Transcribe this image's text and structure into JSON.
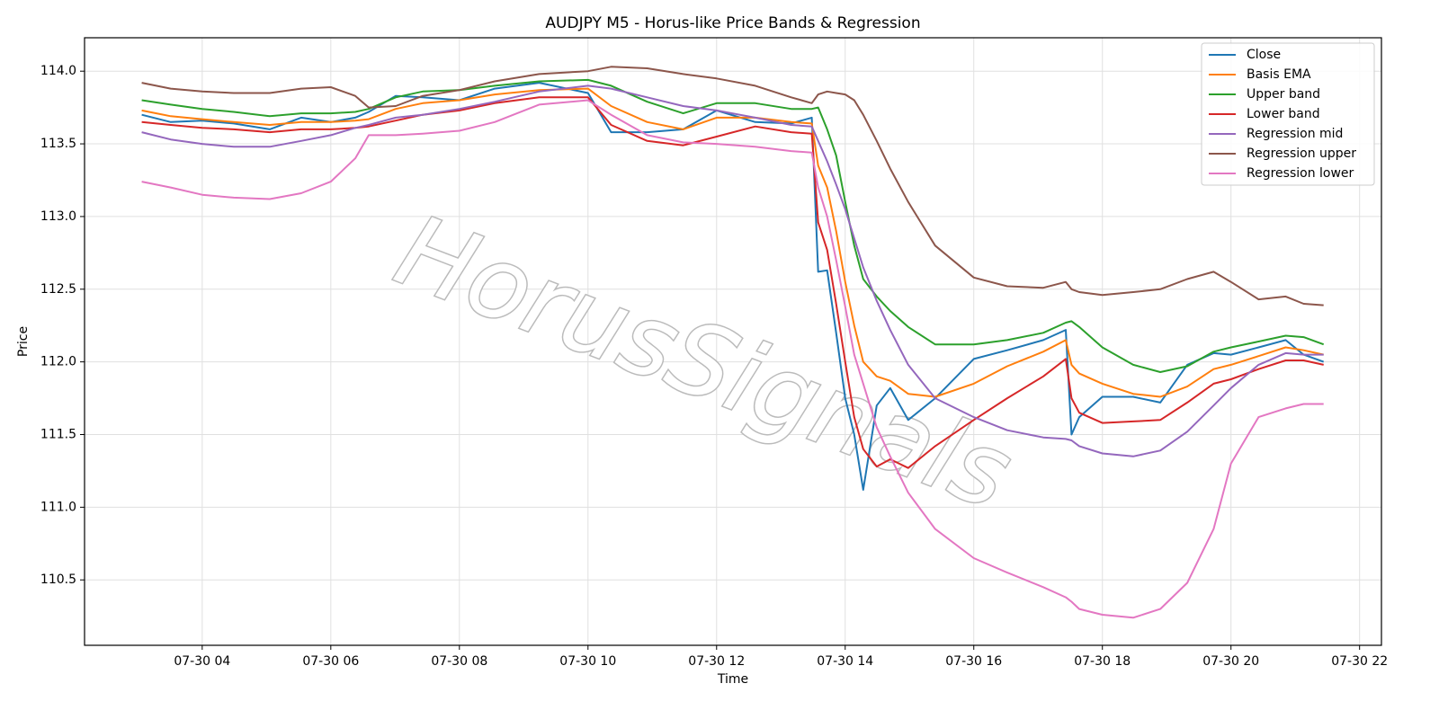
{
  "chart_data": {
    "type": "line",
    "title": "AUDJPY M5 - Horus-like Price Bands & Regression",
    "xlabel": "Time",
    "ylabel": "Price",
    "watermark": "HorusSignals",
    "grid": true,
    "legend": "upper right",
    "xlim": [
      2.17,
      22.34
    ],
    "ylim": [
      110.05,
      114.23
    ],
    "xticks": [
      {
        "value": 4,
        "label": "07-30 04"
      },
      {
        "value": 6,
        "label": "07-30 06"
      },
      {
        "value": 8,
        "label": "07-30 08"
      },
      {
        "value": 10,
        "label": "07-30 10"
      },
      {
        "value": 12,
        "label": "07-30 12"
      },
      {
        "value": 14,
        "label": "07-30 14"
      },
      {
        "value": 16,
        "label": "07-30 16"
      },
      {
        "value": 18,
        "label": "07-30 18"
      },
      {
        "value": 20,
        "label": "07-30 20"
      },
      {
        "value": 22,
        "label": "07-30 22"
      }
    ],
    "yticks": [
      110.5,
      {
        "value": 111,
        "label": "111.0"
      },
      111.5,
      {
        "value": 112,
        "label": "112.0"
      },
      112.5,
      {
        "value": 113,
        "label": "113.0"
      },
      113.5,
      {
        "value": 114,
        "label": "114.0"
      }
    ],
    "x": [
      3.06,
      3.51,
      4.0,
      4.49,
      5.05,
      5.54,
      6.0,
      6.38,
      6.59,
      7.01,
      7.43,
      8.0,
      8.55,
      9.24,
      10.0,
      10.36,
      10.92,
      11.48,
      12.0,
      12.6,
      13.16,
      13.48,
      13.58,
      13.72,
      13.86,
      14.0,
      14.14,
      14.28,
      14.49,
      14.7,
      14.98,
      15.4,
      16.0,
      16.52,
      17.08,
      17.43,
      17.52,
      17.64,
      18.0,
      18.48,
      18.9,
      19.32,
      19.73,
      20.0,
      20.43,
      20.85,
      21.13,
      21.44
    ],
    "series": [
      {
        "name": "Close",
        "color": "#1f77b4",
        "values": [
          113.7,
          113.65,
          113.66,
          113.64,
          113.6,
          113.68,
          113.65,
          113.68,
          113.72,
          113.83,
          113.82,
          113.8,
          113.88,
          113.92,
          113.85,
          113.58,
          113.58,
          113.6,
          113.73,
          113.65,
          113.64,
          113.68,
          112.62,
          112.63,
          112.2,
          111.75,
          111.5,
          111.12,
          111.7,
          111.82,
          111.6,
          111.75,
          112.02,
          112.08,
          112.15,
          112.22,
          111.5,
          111.62,
          111.76,
          111.76,
          111.72,
          111.98,
          112.06,
          112.05,
          112.1,
          112.15,
          112.05,
          112.0
        ]
      },
      {
        "name": "Basis EMA",
        "color": "#ff7f0e",
        "values": [
          113.73,
          113.69,
          113.67,
          113.65,
          113.63,
          113.65,
          113.65,
          113.66,
          113.67,
          113.74,
          113.78,
          113.8,
          113.84,
          113.87,
          113.88,
          113.76,
          113.65,
          113.6,
          113.68,
          113.68,
          113.65,
          113.64,
          113.35,
          113.2,
          112.9,
          112.55,
          112.25,
          112.0,
          111.9,
          111.87,
          111.78,
          111.76,
          111.85,
          111.97,
          112.07,
          112.15,
          111.98,
          111.92,
          111.85,
          111.78,
          111.76,
          111.83,
          111.95,
          111.98,
          112.04,
          112.1,
          112.08,
          112.05
        ]
      },
      {
        "name": "Upper band",
        "color": "#2ca02c",
        "values": [
          113.8,
          113.77,
          113.74,
          113.72,
          113.69,
          113.71,
          113.71,
          113.72,
          113.74,
          113.82,
          113.86,
          113.87,
          113.9,
          113.93,
          113.94,
          113.9,
          113.79,
          113.71,
          113.78,
          113.78,
          113.74,
          113.74,
          113.75,
          113.6,
          113.42,
          113.1,
          112.8,
          112.57,
          112.45,
          112.35,
          112.24,
          112.12,
          112.12,
          112.15,
          112.2,
          112.27,
          112.28,
          112.24,
          112.1,
          111.98,
          111.93,
          111.97,
          112.07,
          112.1,
          112.14,
          112.18,
          112.17,
          112.12
        ]
      },
      {
        "name": "Lower band",
        "color": "#d62728",
        "values": [
          113.65,
          113.63,
          113.61,
          113.6,
          113.58,
          113.6,
          113.6,
          113.61,
          113.62,
          113.66,
          113.7,
          113.73,
          113.78,
          113.82,
          113.82,
          113.63,
          113.52,
          113.49,
          113.55,
          113.62,
          113.58,
          113.57,
          112.96,
          112.77,
          112.4,
          112.0,
          111.62,
          111.4,
          111.28,
          111.33,
          111.27,
          111.42,
          111.6,
          111.75,
          111.9,
          112.02,
          111.75,
          111.65,
          111.58,
          111.59,
          111.6,
          111.72,
          111.85,
          111.88,
          111.95,
          112.01,
          112.01,
          111.98
        ]
      },
      {
        "name": "Regression mid",
        "color": "#9467bd",
        "values": [
          113.58,
          113.53,
          113.5,
          113.48,
          113.48,
          113.52,
          113.56,
          113.61,
          113.63,
          113.68,
          113.7,
          113.74,
          113.79,
          113.86,
          113.9,
          113.88,
          113.82,
          113.76,
          113.73,
          113.68,
          113.63,
          113.62,
          113.52,
          113.38,
          113.22,
          113.05,
          112.85,
          112.65,
          112.42,
          112.22,
          111.98,
          111.75,
          111.62,
          111.53,
          111.48,
          111.47,
          111.46,
          111.42,
          111.37,
          111.35,
          111.39,
          111.52,
          111.7,
          111.82,
          111.98,
          112.06,
          112.05,
          112.05
        ]
      },
      {
        "name": "Regression upper",
        "color": "#8c564b",
        "values": [
          113.92,
          113.88,
          113.86,
          113.85,
          113.85,
          113.88,
          113.89,
          113.83,
          113.75,
          113.76,
          113.83,
          113.87,
          113.93,
          113.98,
          114.0,
          114.03,
          114.02,
          113.98,
          113.95,
          113.9,
          113.82,
          113.78,
          113.84,
          113.86,
          113.85,
          113.84,
          113.8,
          113.7,
          113.52,
          113.33,
          113.1,
          112.8,
          112.58,
          112.52,
          112.51,
          112.55,
          112.5,
          112.48,
          112.46,
          112.48,
          112.5,
          112.57,
          112.62,
          112.55,
          112.43,
          112.45,
          112.4,
          112.39
        ]
      },
      {
        "name": "Regression lower",
        "color": "#e377c2",
        "values": [
          113.24,
          113.2,
          113.15,
          113.13,
          113.12,
          113.16,
          113.24,
          113.4,
          113.56,
          113.56,
          113.57,
          113.59,
          113.65,
          113.77,
          113.8,
          113.7,
          113.56,
          113.51,
          113.5,
          113.48,
          113.45,
          113.44,
          113.2,
          113.0,
          112.7,
          112.38,
          112.05,
          111.85,
          111.55,
          111.35,
          111.1,
          110.85,
          110.65,
          110.55,
          110.45,
          110.38,
          110.35,
          110.3,
          110.26,
          110.24,
          110.3,
          110.48,
          110.85,
          111.3,
          111.62,
          111.68,
          111.71,
          111.71
        ]
      }
    ]
  }
}
